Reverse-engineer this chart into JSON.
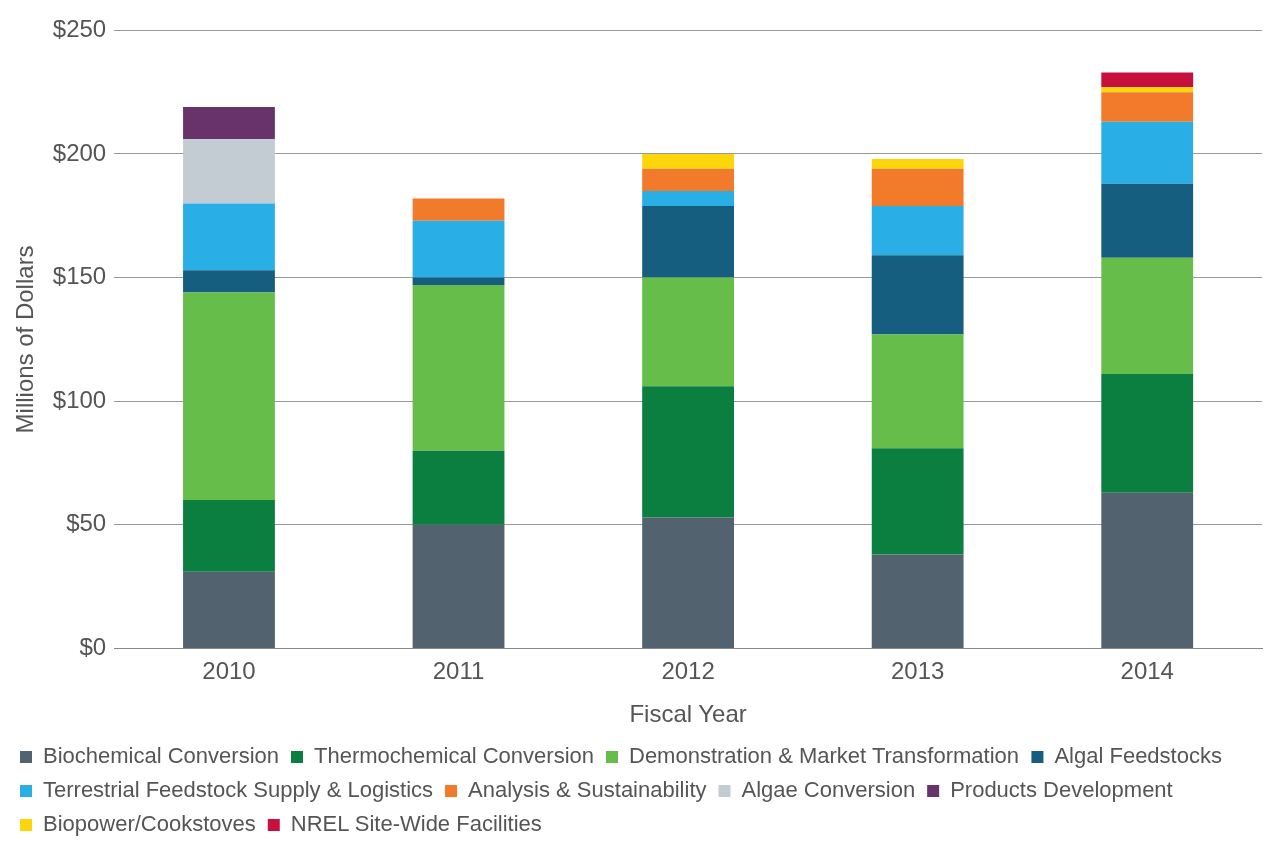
{
  "chart_data": {
    "type": "bar",
    "stacked": true,
    "xlabel": "Fiscal Year",
    "ylabel": "Millions of Dollars",
    "categories": [
      "2010",
      "2011",
      "2012",
      "2013",
      "2014"
    ],
    "ylim": [
      0,
      250
    ],
    "yticks": [
      {
        "value": 0,
        "label": "$0"
      },
      {
        "value": 50,
        "label": "$50"
      },
      {
        "value": 100,
        "label": "$100"
      },
      {
        "value": 150,
        "label": "$150"
      },
      {
        "value": 200,
        "label": "$200"
      },
      {
        "value": 250,
        "label": "$250"
      }
    ],
    "grid": "y",
    "legend": "bottom",
    "series": [
      {
        "name": "Biochemical Conversion",
        "color": "#52626f",
        "values": [
          31,
          50,
          53,
          38,
          63
        ]
      },
      {
        "name": "Thermochemical Conversion",
        "color": "#0b7f40",
        "values": [
          29,
          30,
          53,
          43,
          48
        ]
      },
      {
        "name": "Demonstration & Market Transformation",
        "color": "#66bd4a",
        "values": [
          84,
          67,
          44,
          46,
          47
        ]
      },
      {
        "name": "Algal Feedstocks",
        "color": "#165e80",
        "values": [
          9,
          3,
          29,
          32,
          30
        ]
      },
      {
        "name": "Terrestrial Feedstock Supply & Logistics",
        "color": "#29aee6",
        "values": [
          27,
          23,
          6,
          20,
          25
        ]
      },
      {
        "name": "Analysis & Sustainability",
        "color": "#f27b2b",
        "values": [
          null,
          9,
          9,
          15,
          12
        ]
      },
      {
        "name": "Algae Conversion",
        "color": "#c3cbd3",
        "values": [
          26,
          null,
          null,
          null,
          null
        ]
      },
      {
        "name": "Products Development",
        "color": "#68326b",
        "values": [
          13,
          null,
          null,
          null,
          null
        ]
      },
      {
        "name": "Biopower/Cookstoves",
        "color": "#fcd60a",
        "values": [
          null,
          null,
          6,
          4,
          2
        ]
      },
      {
        "name": "NREL Site-Wide Facilities",
        "color": "#c8103f",
        "values": [
          null,
          null,
          null,
          null,
          6
        ]
      }
    ]
  }
}
